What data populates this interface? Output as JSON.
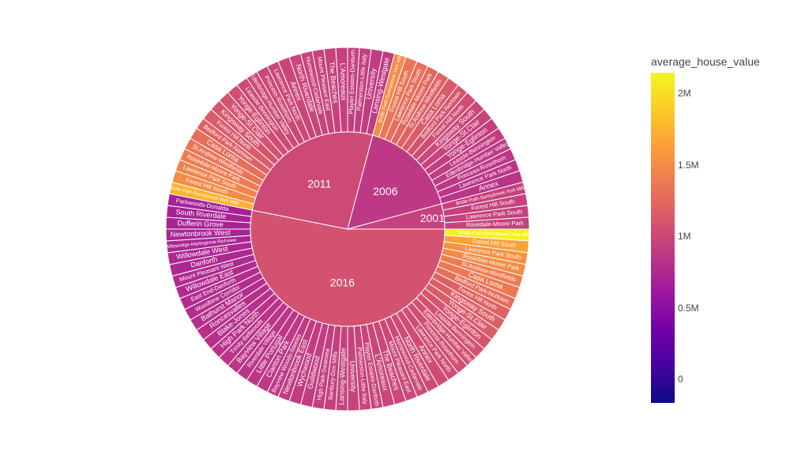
{
  "chart_data": {
    "type": "sunburst",
    "colorbar": {
      "title": "average_house_value",
      "min": -160000,
      "max": 2150000,
      "ticks": [
        {
          "value": 0,
          "label": "0"
        },
        {
          "value": 500000,
          "label": "0.5M"
        },
        {
          "value": 1000000,
          "label": "1M"
        },
        {
          "value": 1500000,
          "label": "1.5M"
        },
        {
          "value": 2000000,
          "label": "2M"
        }
      ]
    },
    "years": [
      {
        "label": "2016",
        "value": 1080000,
        "children": [
          [
            "Bridle Path-Sunnybrook-York Mills",
            2100000
          ],
          [
            "Forest Hill South",
            1650000
          ],
          [
            "Lawrence Park South",
            1550000
          ],
          [
            "Rosedale-Moore Park",
            1500000
          ],
          [
            "St.Andrew-Windfields",
            1400000
          ],
          [
            "Casa Loma",
            1380000
          ],
          [
            "Bedford Park-Nortown",
            1300000
          ],
          [
            "Forest Hill North",
            1200000
          ],
          [
            "Kingsway South",
            1180000
          ],
          [
            "Yonge-St.Clair",
            1150000
          ],
          [
            "Yonge-Eglinton",
            1100000
          ],
          [
            "Leaside-Bennington",
            1080000
          ],
          [
            "Edenbridge-Humber Valley",
            1070000
          ],
          [
            "Princess-Rosethorn",
            1060000
          ],
          [
            "Lawrence Park North",
            1050000
          ],
          [
            "Annex",
            1040000
          ],
          [
            "North Riverdale",
            1030000
          ],
          [
            "Humewood-Cedarvale",
            1020000
          ],
          [
            "Mount Pleasant East",
            1010000
          ],
          [
            "The Beaches",
            1000000
          ],
          [
            "L'Amoreaux",
            990000
          ],
          [
            "Playter Estates-Danforth",
            980000
          ],
          [
            "Palmerston-Little Italy",
            970000
          ],
          [
            "University",
            960000
          ],
          [
            "Lansing-Westgate",
            950000
          ],
          [
            "Banbury-Don Mills",
            940000
          ],
          [
            "High Park-Swansea",
            930000
          ],
          [
            "Guildwood",
            920000
          ],
          [
            "Wychwood",
            910000
          ],
          [
            "Newtonbrook East",
            900000
          ],
          [
            "Bayview Woods-Steeles",
            890000
          ],
          [
            "Clanton Park",
            880000
          ],
          [
            "Little Portugal",
            870000
          ],
          [
            "Riverdale Village",
            860000
          ],
          [
            "Bayview Village",
            850000
          ],
          [
            "Trinity-Bellwoods",
            840000
          ],
          [
            "High Park North",
            830000
          ],
          [
            "Blake-Jones",
            820000
          ],
          [
            "Roncesvalles",
            810000
          ],
          [
            "Bathurst Manor",
            800000
          ],
          [
            "Woodbine Corridor",
            790000
          ],
          [
            "East End-Danforth",
            780000
          ],
          [
            "Willowdale East",
            770000
          ],
          [
            "Mount Pleasant West",
            760000
          ],
          [
            "Danforth",
            750000
          ],
          [
            "Willowdale West",
            740000
          ],
          [
            "Willowridge-Martingrove-Richview",
            730000
          ],
          [
            "Newtonbrook West",
            720000
          ],
          [
            "Dufferin Grove",
            710000
          ],
          [
            "South Riverdale",
            700000
          ],
          [
            "Parkwoods-Donalda",
            690000
          ]
        ]
      },
      {
        "label": "2011",
        "value": 1020000,
        "children": [
          [
            "Bridle Path-Sunnybrook-York Mills",
            1750000
          ],
          [
            "Forest Hill South",
            1500000
          ],
          [
            "Lawrence Park South",
            1450000
          ],
          [
            "Rosedale-Moore Park",
            1400000
          ],
          [
            "St.Andrew-Windfields",
            1350000
          ],
          [
            "Casa Loma",
            1300000
          ],
          [
            "Bedford Park-Nortown",
            1200000
          ],
          [
            "Forest Hill North",
            1150000
          ],
          [
            "Kingsway South",
            1100000
          ],
          [
            "Yonge-St.Clair",
            1080000
          ],
          [
            "Yonge-Eglinton",
            1050000
          ],
          [
            "Leaside-Bennington",
            1030000
          ],
          [
            "Edenbridge-Humber Valley",
            1020000
          ],
          [
            "Princess-Rosethorn",
            1010000
          ],
          [
            "Lawrence Park North",
            1000000
          ],
          [
            "Annex",
            990000
          ],
          [
            "North Riverdale",
            980000
          ],
          [
            "Humewood-Cedarvale",
            970000
          ],
          [
            "Mount Pleasant East",
            960000
          ],
          [
            "The Beaches",
            950000
          ],
          [
            "L'Amoreaux",
            940000
          ],
          [
            "Playter Estates-Danforth",
            930000
          ],
          [
            "Palmerston-Little Italy",
            920000
          ],
          [
            "University",
            910000
          ],
          [
            "Lansing-Westgate",
            900000
          ]
        ]
      },
      {
        "label": "2006",
        "value": 880000,
        "children": [
          [
            "Bridle Path-Sunnybrook-York Mills",
            1500000
          ],
          [
            "Forest Hill South",
            1350000
          ],
          [
            "Lawrence Park South",
            1300000
          ],
          [
            "Rosedale-Moore Park",
            1250000
          ],
          [
            "St.Andrew-Windfields",
            1200000
          ],
          [
            "Casa Loma",
            1150000
          ],
          [
            "Bedford Park-Nortown",
            1100000
          ],
          [
            "Forest Hill North",
            1050000
          ],
          [
            "Kingsway South",
            1000000
          ],
          [
            "Yonge-St.Clair",
            960000
          ],
          [
            "Yonge-Eglinton",
            930000
          ],
          [
            "Leaside-Bennington",
            910000
          ],
          [
            "Edenbridge-Humber Valley",
            890000
          ],
          [
            "Princess-Rosethorn",
            870000
          ],
          [
            "Lawrence Park North",
            850000
          ],
          [
            "Annex",
            840000
          ]
        ]
      },
      {
        "label": "2001",
        "value": 950000,
        "children": [
          [
            "Bridle Path-Sunnybrook-York Mills",
            950000
          ],
          [
            "Forest Hill South",
            950000
          ],
          [
            "Lawrence Park South",
            950000
          ],
          [
            "Rosedale-Moore Park",
            950000
          ]
        ]
      }
    ]
  }
}
